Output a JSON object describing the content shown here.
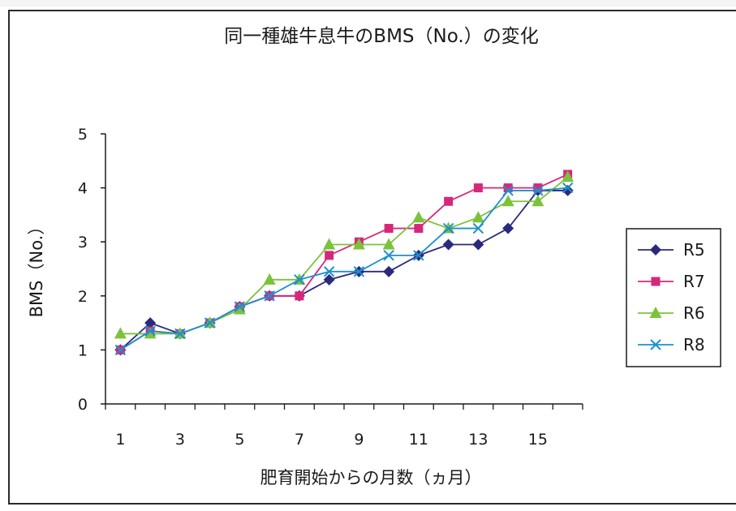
{
  "chart_data": {
    "type": "line",
    "title": "同一種雄牛息牛のBMS（No.）の変化",
    "xlabel": "肥育開始からの月数（ヵ月）",
    "ylabel": "BMS（No.）",
    "x": [
      1,
      2,
      3,
      4,
      5,
      6,
      7,
      8,
      9,
      10,
      11,
      12,
      13,
      14,
      15,
      16
    ],
    "xlim": [
      0.5,
      16.5
    ],
    "x_tick_labels": [
      "1",
      "3",
      "5",
      "7",
      "9",
      "11",
      "13",
      "15"
    ],
    "ylim": [
      0,
      5
    ],
    "y_tick_labels": [
      "0",
      "1",
      "2",
      "3",
      "4",
      "5"
    ],
    "grid": false,
    "legend_position": "right",
    "series": [
      {
        "name": "R5",
        "color": "#2b2a7a",
        "marker": "diamond",
        "values": [
          1.0,
          1.5,
          1.3,
          1.5,
          1.8,
          2.0,
          2.0,
          2.3,
          2.45,
          2.45,
          2.75,
          2.95,
          2.95,
          3.25,
          3.95,
          3.95
        ]
      },
      {
        "name": "R7",
        "color": "#d6287a",
        "marker": "square",
        "values": [
          1.0,
          1.35,
          1.3,
          1.5,
          1.8,
          2.0,
          2.0,
          2.75,
          3.0,
          3.25,
          3.25,
          3.75,
          4.0,
          4.0,
          4.0,
          4.25
        ]
      },
      {
        "name": "R6",
        "color": "#7cc23a",
        "marker": "triangle",
        "values": [
          1.3,
          1.3,
          1.3,
          1.5,
          1.75,
          2.3,
          2.3,
          2.95,
          2.95,
          2.95,
          3.45,
          3.25,
          3.45,
          3.75,
          3.75,
          4.2
        ]
      },
      {
        "name": "R8",
        "color": "#1e8fd0",
        "marker": "x",
        "values": [
          1.0,
          1.35,
          1.3,
          1.5,
          1.8,
          2.0,
          2.3,
          2.45,
          2.45,
          2.75,
          2.75,
          3.25,
          3.25,
          3.95,
          3.95,
          4.0
        ]
      }
    ]
  }
}
